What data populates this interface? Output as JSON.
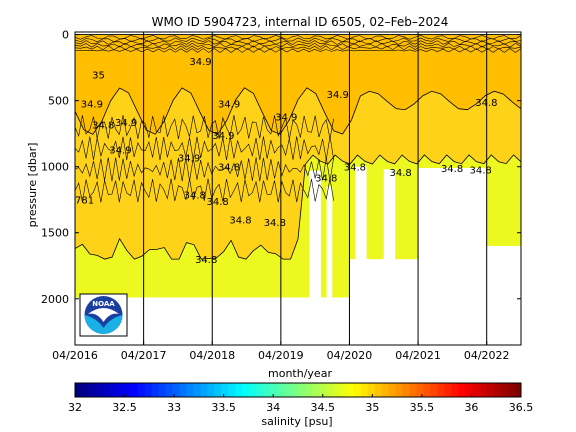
{
  "chart_data": {
    "type": "heatmap",
    "title": "WMO ID 5904723, internal ID 6505, 02–Feb–2024",
    "xlabel": "month/year",
    "ylabel": "pressure [dbar]",
    "x_ticks": [
      "04/2016",
      "04/2017",
      "04/2018",
      "04/2019",
      "04/2020",
      "04/2021",
      "04/2022"
    ],
    "y_ticks": [
      0,
      500,
      1000,
      1500,
      2000
    ],
    "ylim": [
      2350,
      -20
    ],
    "y_reversed": true,
    "grid": false,
    "colorbar": {
      "label": "salinity [psu]",
      "ticks": [
        32,
        32.5,
        33,
        33.5,
        34,
        34.5,
        35,
        35.5,
        36,
        36.5
      ],
      "range": [
        32,
        36.5
      ],
      "colormap": "jet"
    },
    "profile_gaps": [
      "04/2017",
      "04/2018",
      "04/2019",
      "04/2020",
      "04/2021",
      "04/2022"
    ],
    "max_depth_by_period": [
      {
        "period": "04/2016-04/2020",
        "max_pressure": 1990
      },
      {
        "period": "04/2020-04/2021",
        "max_pressure": 1700
      },
      {
        "period": "04/2021-04/2022",
        "max_pressure": 1010
      },
      {
        "period": "04/2022-end",
        "max_pressure": 1600
      }
    ],
    "contour_labels": [
      {
        "time": "07/2016",
        "pressure": 300,
        "text": "35"
      },
      {
        "time": "05/2016",
        "pressure": 520,
        "text": "34.9"
      },
      {
        "time": "07/2016",
        "pressure": 680,
        "text": "34.8"
      },
      {
        "time": "11/2016",
        "pressure": 660,
        "text": "34.9"
      },
      {
        "time": "10/2016",
        "pressure": 870,
        "text": "34.9"
      },
      {
        "time": "04/2016",
        "pressure": 1250,
        "text": "781"
      },
      {
        "time": "12/2017",
        "pressure": 200,
        "text": "34.9"
      },
      {
        "time": "10/2017",
        "pressure": 930,
        "text": "34.9"
      },
      {
        "time": "11/2017",
        "pressure": 1210,
        "text": "34.8"
      },
      {
        "time": "05/2018",
        "pressure": 520,
        "text": "34.9"
      },
      {
        "time": "04/2018",
        "pressure": 760,
        "text": "34.9"
      },
      {
        "time": "05/2018",
        "pressure": 1000,
        "text": "34.8"
      },
      {
        "time": "03/2018",
        "pressure": 1260,
        "text": "34.8"
      },
      {
        "time": "07/2018",
        "pressure": 1400,
        "text": "34.8"
      },
      {
        "time": "01/2018",
        "pressure": 1700,
        "text": "34.8"
      },
      {
        "time": "03/2019",
        "pressure": 620,
        "text": "34.9"
      },
      {
        "time": "01/2019",
        "pressure": 1420,
        "text": "34.8"
      },
      {
        "time": "12/2019",
        "pressure": 450,
        "text": "34.9"
      },
      {
        "time": "10/2019",
        "pressure": 1080,
        "text": "34.8"
      },
      {
        "time": "03/2020",
        "pressure": 1000,
        "text": "34.8"
      },
      {
        "time": "11/2020",
        "pressure": 1040,
        "text": "34.8"
      },
      {
        "time": "01/2022",
        "pressure": 1020,
        "text": "34.8"
      },
      {
        "time": "08/2021",
        "pressure": 1010,
        "text": "34.8"
      },
      {
        "time": "02/2022",
        "pressure": 510,
        "text": "34.8"
      }
    ]
  },
  "logo": {
    "text": "NOAA",
    "colors": {
      "sky": "#1a3fa0",
      "sea": "#1ab0e6",
      "gull": "#ffffff"
    }
  },
  "colors": {
    "background_field": "#ffd21a",
    "upper_layer": "#ffbe00",
    "deep_field": "#ecf820",
    "frame": "#000000"
  }
}
